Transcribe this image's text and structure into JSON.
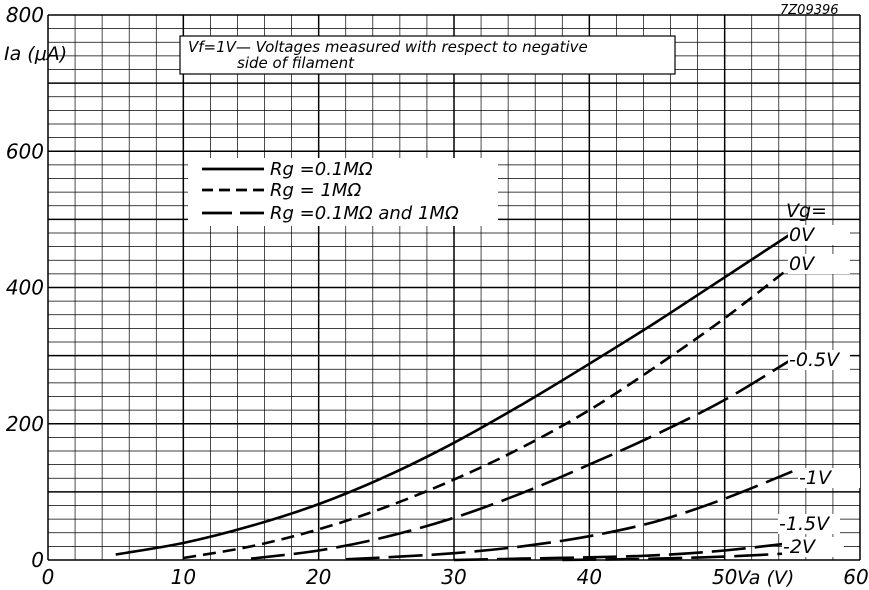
{
  "figure_code": "7Z09396",
  "chart_data": {
    "type": "line",
    "xlabel": "Va (V)",
    "ylabel": "Ia (μA)",
    "xlim": [
      0,
      60
    ],
    "ylim": [
      0,
      800
    ],
    "xticks": [
      0,
      10,
      20,
      30,
      40,
      50,
      60
    ],
    "yticks": [
      0,
      200,
      400,
      600,
      800
    ],
    "grid": true,
    "annotation": "Vf=1V— Voltages measured with respect to negative side of filament",
    "annotation_lines": [
      "Vf=1V— Voltages measured with respect to  negative",
      "side of filament"
    ],
    "legend_title": "Vg=",
    "legend": [
      {
        "label": "Rg =0.1MΩ",
        "style": "solid"
      },
      {
        "label": "Rg = 1MΩ",
        "style": "dashed"
      },
      {
        "label": "Rg =0.1MΩ and 1MΩ",
        "style": "long-dash"
      }
    ],
    "series": [
      {
        "name": "0V",
        "style": "solid",
        "x": [
          5,
          10,
          15,
          20,
          25,
          30,
          35,
          40,
          45,
          50,
          55
        ],
        "y": [
          8,
          25,
          50,
          82,
          123,
          172,
          228,
          288,
          350,
          415,
          480
        ]
      },
      {
        "name": "0V",
        "style": "dashed",
        "x": [
          10,
          15,
          20,
          25,
          30,
          35,
          40,
          45,
          50,
          55
        ],
        "y": [
          3,
          20,
          45,
          78,
          118,
          165,
          220,
          285,
          355,
          432
        ]
      },
      {
        "name": "-0.5V",
        "style": "long-dash",
        "x": [
          15,
          20,
          25,
          30,
          35,
          40,
          45,
          50,
          55
        ],
        "y": [
          2,
          14,
          34,
          62,
          98,
          140,
          185,
          235,
          295
        ]
      },
      {
        "name": "-1V",
        "style": "long-dash",
        "x": [
          22,
          25,
          30,
          35,
          40,
          45,
          50,
          55
        ],
        "y": [
          1,
          4,
          10,
          20,
          35,
          57,
          90,
          130
        ]
      },
      {
        "name": "-1.5V",
        "style": "long-dash",
        "x": [
          30,
          35,
          40,
          45,
          50,
          55
        ],
        "y": [
          0,
          2,
          4,
          7,
          14,
          25
        ]
      },
      {
        "name": "-2V",
        "style": "long-dash",
        "x": [
          38,
          42,
          45,
          50,
          55
        ],
        "y": [
          0,
          1,
          2,
          5,
          10
        ]
      }
    ]
  }
}
